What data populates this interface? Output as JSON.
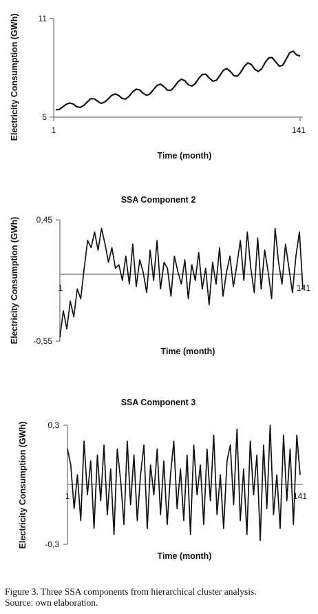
{
  "chart_data": [
    {
      "type": "line",
      "title": "",
      "xlabel": "Time (month)",
      "ylabel": "Electricity Consumption (GWh)",
      "x_ticks": [
        "1",
        "141"
      ],
      "y_ticks": [
        "5",
        "11"
      ],
      "xlim": [
        1,
        141
      ],
      "ylim": [
        5,
        11
      ],
      "grid": false,
      "legend": "none",
      "line_color": "#111111",
      "series": [
        {
          "x": [
            1,
            3,
            5,
            7,
            9,
            11,
            13,
            15,
            17,
            19,
            21,
            23,
            25,
            27,
            29,
            31,
            33,
            35,
            37,
            39,
            41,
            43,
            45,
            47,
            49,
            51,
            53,
            55,
            57,
            59,
            61,
            63,
            65,
            67,
            69,
            71,
            73,
            75,
            77,
            79,
            81,
            83,
            85,
            87,
            89,
            91,
            93,
            95,
            97,
            99,
            101,
            103,
            105,
            107,
            109,
            111,
            113,
            115,
            117,
            119,
            121,
            123,
            125,
            127,
            129,
            131,
            133,
            135,
            137,
            139,
            141
          ],
          "values": [
            5.45,
            5.47,
            5.62,
            5.78,
            5.86,
            5.8,
            5.64,
            5.59,
            5.71,
            5.92,
            6.12,
            6.12,
            5.97,
            5.84,
            5.92,
            6.1,
            6.32,
            6.42,
            6.32,
            6.14,
            6.1,
            6.27,
            6.53,
            6.7,
            6.67,
            6.46,
            6.33,
            6.42,
            6.68,
            6.93,
            7.01,
            6.86,
            6.64,
            6.63,
            6.86,
            7.15,
            7.31,
            7.22,
            6.97,
            6.89,
            7.05,
            7.37,
            7.6,
            7.61,
            7.38,
            7.19,
            7.24,
            7.53,
            7.85,
            7.96,
            7.79,
            7.53,
            7.49,
            7.74,
            8.09,
            8.3,
            8.21,
            7.92,
            7.78,
            7.94,
            8.33,
            8.61,
            8.63,
            8.37,
            8.11,
            8.15,
            8.52,
            8.92,
            9.02,
            8.79,
            8.72
          ]
        }
      ]
    },
    {
      "type": "line",
      "title": "SSA Component 2",
      "xlabel": "Time (month)",
      "ylabel": "Electricity Consumption (GWh)",
      "x_ticks": [
        "1",
        "141"
      ],
      "y_ticks": [
        "0,45",
        "-0,55"
      ],
      "xlim": [
        1,
        141
      ],
      "ylim": [
        -0.55,
        0.45
      ],
      "zero_line": true,
      "grid": false,
      "legend": "none",
      "line_color": "#111111",
      "series": [
        {
          "x": [
            1,
            3,
            5,
            7,
            9,
            11,
            13,
            15,
            17,
            19,
            21,
            23,
            25,
            27,
            29,
            31,
            33,
            35,
            37,
            39,
            41,
            43,
            45,
            47,
            49,
            51,
            53,
            55,
            57,
            59,
            61,
            63,
            65,
            67,
            69,
            71,
            73,
            75,
            77,
            79,
            81,
            83,
            85,
            87,
            89,
            91,
            93,
            95,
            97,
            99,
            101,
            103,
            105,
            107,
            109,
            111,
            113,
            115,
            117,
            119,
            121,
            123,
            125,
            127,
            129,
            131,
            133,
            135,
            137,
            139,
            141
          ],
          "values": [
            -0.52,
            -0.3,
            -0.45,
            -0.22,
            -0.35,
            -0.12,
            -0.2,
            0.05,
            0.28,
            0.22,
            0.35,
            0.2,
            0.38,
            0.25,
            0.1,
            0.22,
            0.05,
            0.08,
            -0.05,
            0.15,
            -0.08,
            0.25,
            -0.1,
            0.12,
            0.02,
            -0.15,
            0.2,
            -0.05,
            0.28,
            -0.12,
            0.1,
            0.05,
            -0.18,
            0.15,
            0.02,
            -0.08,
            0.12,
            -0.2,
            0.08,
            -0.05,
            0.18,
            -0.12,
            0.05,
            -0.25,
            0.1,
            -0.08,
            0.22,
            -0.18,
            0.02,
            0.15,
            -0.1,
            0.08,
            0.28,
            -0.05,
            0.35,
            0.05,
            -0.15,
            0.3,
            -0.12,
            0.2,
            0.02,
            -0.2,
            0.38,
            0.1,
            -0.08,
            0.25,
            0.05,
            -0.15,
            0.15,
            0.35,
            -0.12
          ]
        }
      ]
    },
    {
      "type": "line",
      "title": "SSA Component 3",
      "xlabel": "Time (month)",
      "ylabel": "Electricity Consumption (GWh)",
      "x_ticks": [
        "1",
        "141"
      ],
      "y_ticks": [
        "0,3",
        "-0,3"
      ],
      "xlim": [
        1,
        141
      ],
      "ylim": [
        -0.3,
        0.3
      ],
      "zero_line": true,
      "grid": false,
      "legend": "none",
      "line_color": "#111111",
      "series": [
        {
          "x": [
            1,
            3,
            5,
            7,
            9,
            11,
            13,
            15,
            17,
            19,
            21,
            23,
            25,
            27,
            29,
            31,
            33,
            35,
            37,
            39,
            41,
            43,
            45,
            47,
            49,
            51,
            53,
            55,
            57,
            59,
            61,
            63,
            65,
            67,
            69,
            71,
            73,
            75,
            77,
            79,
            81,
            83,
            85,
            87,
            89,
            91,
            93,
            95,
            97,
            99,
            101,
            103,
            105,
            107,
            109,
            111,
            113,
            115,
            117,
            119,
            121,
            123,
            125,
            127,
            129,
            131,
            133,
            135,
            137,
            139,
            141
          ],
          "values": [
            0.18,
            0.1,
            -0.12,
            0.05,
            -0.18,
            0.22,
            -0.05,
            0.12,
            -0.22,
            0.15,
            -0.08,
            0.2,
            -0.15,
            0.08,
            -0.25,
            0.18,
            0.02,
            -0.2,
            0.22,
            -0.1,
            0.15,
            -0.18,
            0.05,
            0.2,
            -0.22,
            0.1,
            -0.05,
            0.18,
            -0.15,
            0.12,
            -0.2,
            0.05,
            0.22,
            -0.12,
            0.08,
            -0.18,
            0.15,
            -0.25,
            0.2,
            -0.05,
            0.1,
            -0.2,
            0.18,
            -0.08,
            0.25,
            -0.15,
            0.05,
            -0.22,
            0.12,
            0.2,
            -0.1,
            0.28,
            -0.18,
            0.08,
            -0.25,
            0.22,
            -0.05,
            0.15,
            -0.28,
            0.2,
            -0.12,
            0.3,
            -0.15,
            0.05,
            -0.22,
            0.25,
            -0.08,
            0.18,
            -0.2,
            0.25,
            0.05
          ]
        }
      ]
    }
  ],
  "caption": {
    "line1": "Figure 3.   Three SSA components from hierarchical cluster analysis.",
    "line2": "Source: own elaboration."
  }
}
